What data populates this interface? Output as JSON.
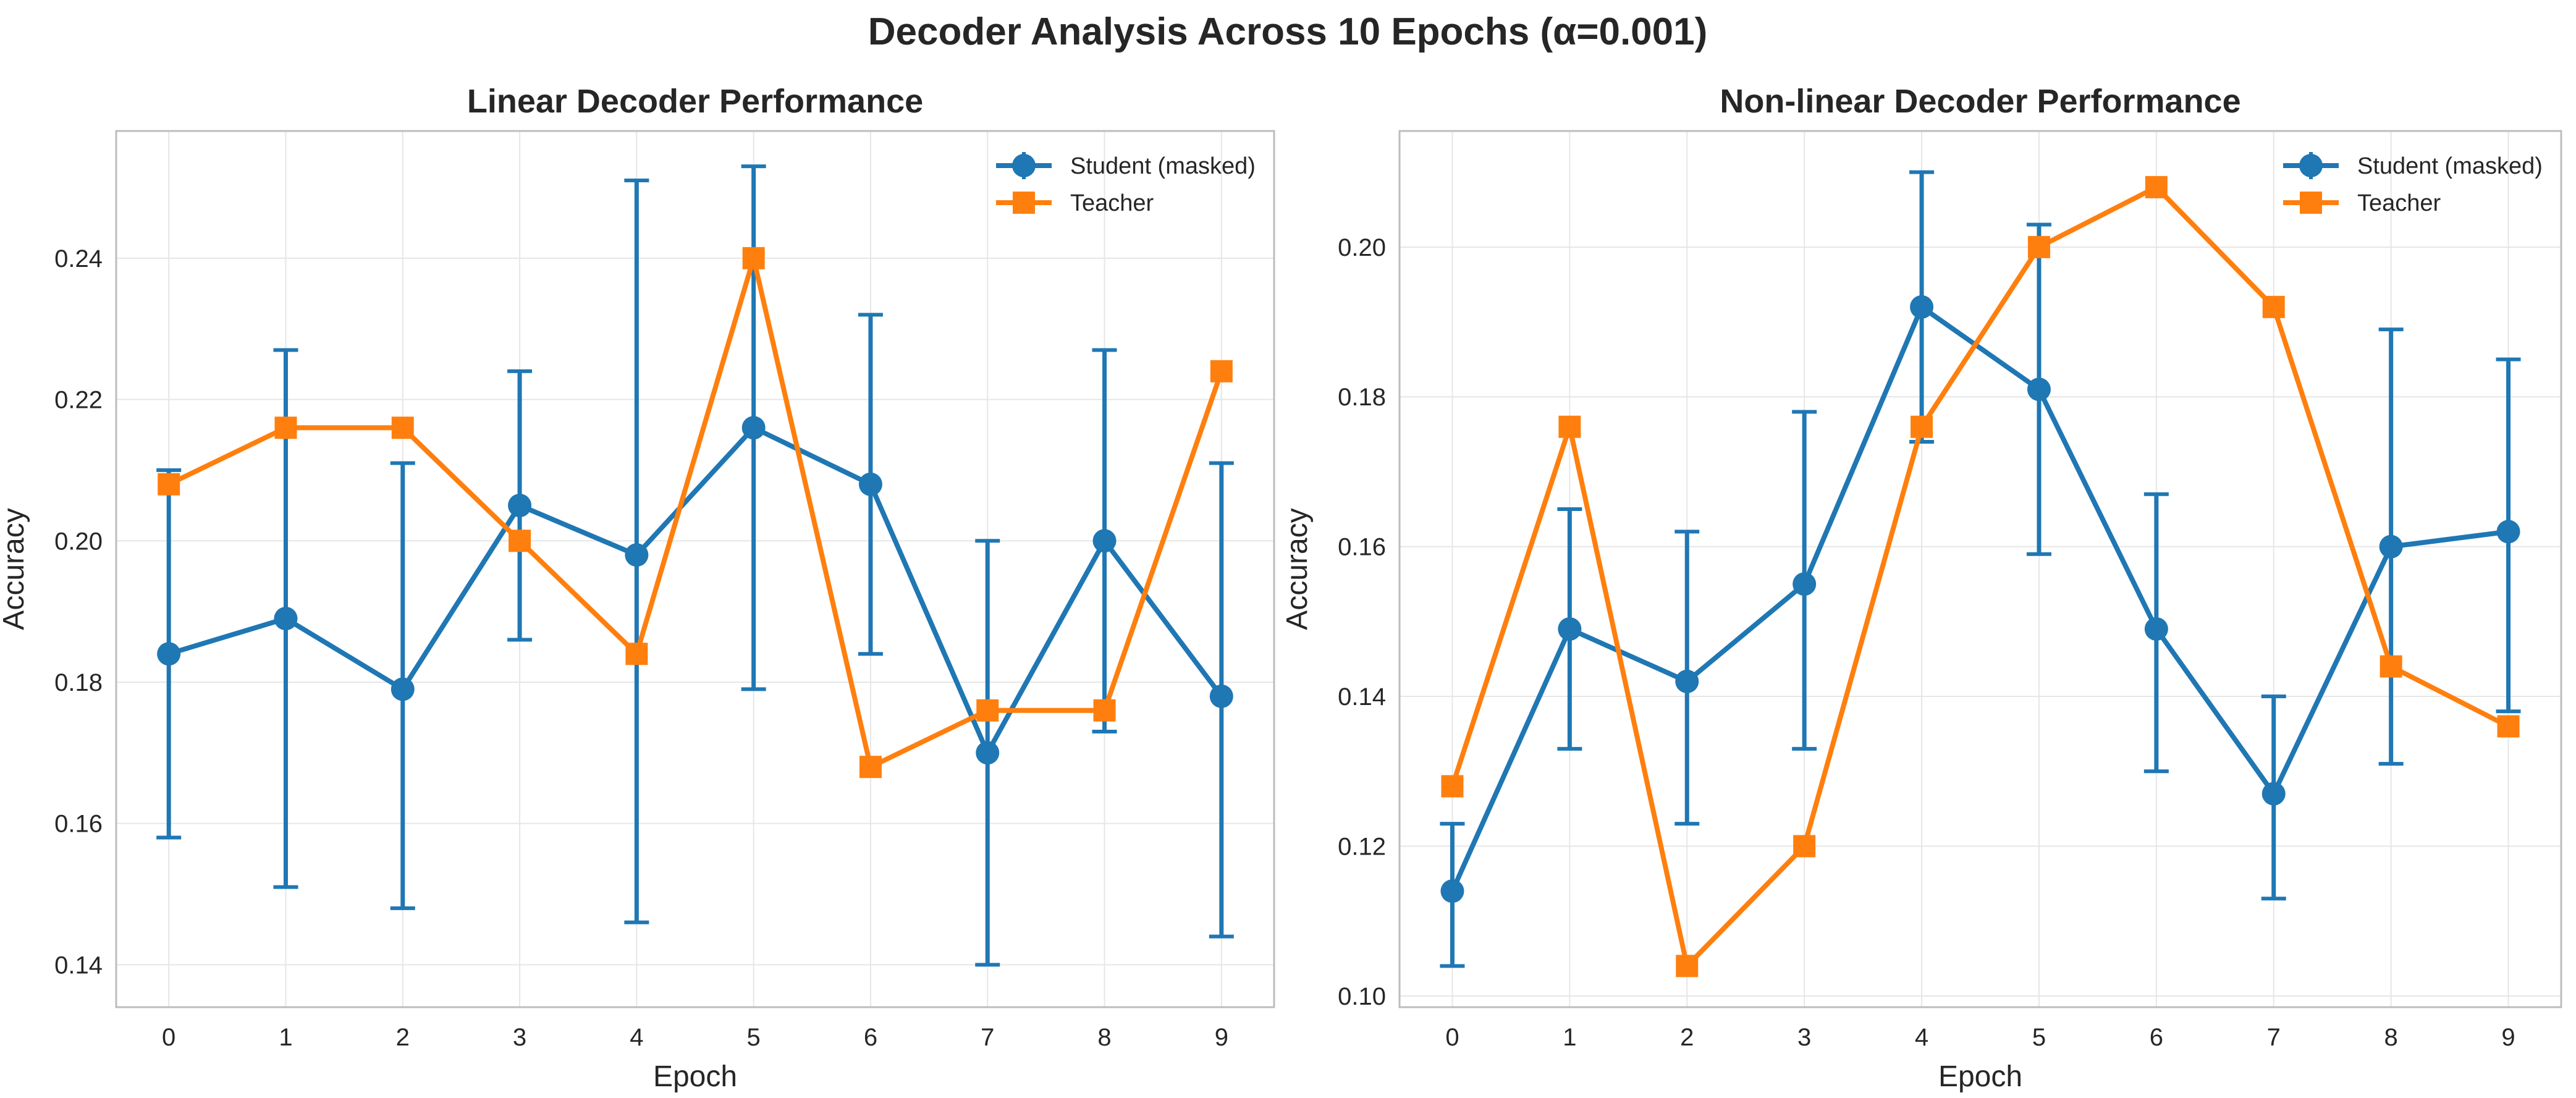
{
  "figure": {
    "suptitle": "Decoder Analysis Across 10 Epochs (α=0.001)"
  },
  "chart_data": [
    {
      "type": "line",
      "title": "Linear Decoder Performance",
      "xlabel": "Epoch",
      "ylabel": "Accuracy",
      "x": [
        0,
        1,
        2,
        3,
        4,
        5,
        6,
        7,
        8,
        9
      ],
      "xlim": [
        -0.45,
        9.45
      ],
      "ylim": [
        0.134,
        0.258
      ],
      "yticks": [
        0.14,
        0.16,
        0.18,
        0.2,
        0.22,
        0.24
      ],
      "ytick_labels": [
        "0.14",
        "0.16",
        "0.18",
        "0.20",
        "0.22",
        "0.24"
      ],
      "grid": true,
      "legend_position": "top-right",
      "series": [
        {
          "name": "Student (masked)",
          "color": "#1f77b4",
          "marker": "circle",
          "values": [
            0.184,
            0.189,
            0.179,
            0.205,
            0.198,
            0.216,
            0.208,
            0.17,
            0.2,
            0.178
          ],
          "error_lower": [
            0.158,
            0.151,
            0.148,
            0.186,
            0.146,
            0.179,
            0.184,
            0.14,
            0.173,
            0.144
          ],
          "error_upper": [
            0.21,
            0.227,
            0.211,
            0.224,
            0.251,
            0.253,
            0.232,
            0.2,
            0.227,
            0.211
          ]
        },
        {
          "name": "Teacher",
          "color": "#ff7f0e",
          "marker": "square",
          "values": [
            0.208,
            0.216,
            0.216,
            0.2,
            0.184,
            0.24,
            0.168,
            0.176,
            0.176,
            0.224
          ]
        }
      ]
    },
    {
      "type": "line",
      "title": "Non-linear Decoder Performance",
      "xlabel": "Epoch",
      "ylabel": "Accuracy",
      "x": [
        0,
        1,
        2,
        3,
        4,
        5,
        6,
        7,
        8,
        9
      ],
      "xlim": [
        -0.45,
        9.45
      ],
      "ylim": [
        0.0985,
        0.2155
      ],
      "yticks": [
        0.1,
        0.12,
        0.14,
        0.16,
        0.18,
        0.2
      ],
      "ytick_labels": [
        "0.10",
        "0.12",
        "0.14",
        "0.16",
        "0.18",
        "0.20"
      ],
      "grid": true,
      "legend_position": "top-right",
      "series": [
        {
          "name": "Student (masked)",
          "color": "#1f77b4",
          "marker": "circle",
          "values": [
            0.114,
            0.149,
            0.142,
            0.155,
            0.192,
            0.181,
            0.149,
            0.127,
            0.16,
            0.162
          ],
          "error_lower": [
            0.104,
            0.133,
            0.123,
            0.133,
            0.174,
            0.159,
            0.13,
            0.113,
            0.131,
            0.138
          ],
          "error_upper": [
            0.123,
            0.165,
            0.162,
            0.178,
            0.21,
            0.203,
            0.167,
            0.14,
            0.189,
            0.185
          ]
        },
        {
          "name": "Teacher",
          "color": "#ff7f0e",
          "marker": "square",
          "values": [
            0.128,
            0.176,
            0.104,
            0.12,
            0.176,
            0.2,
            0.208,
            0.192,
            0.144,
            0.136
          ]
        }
      ]
    }
  ]
}
